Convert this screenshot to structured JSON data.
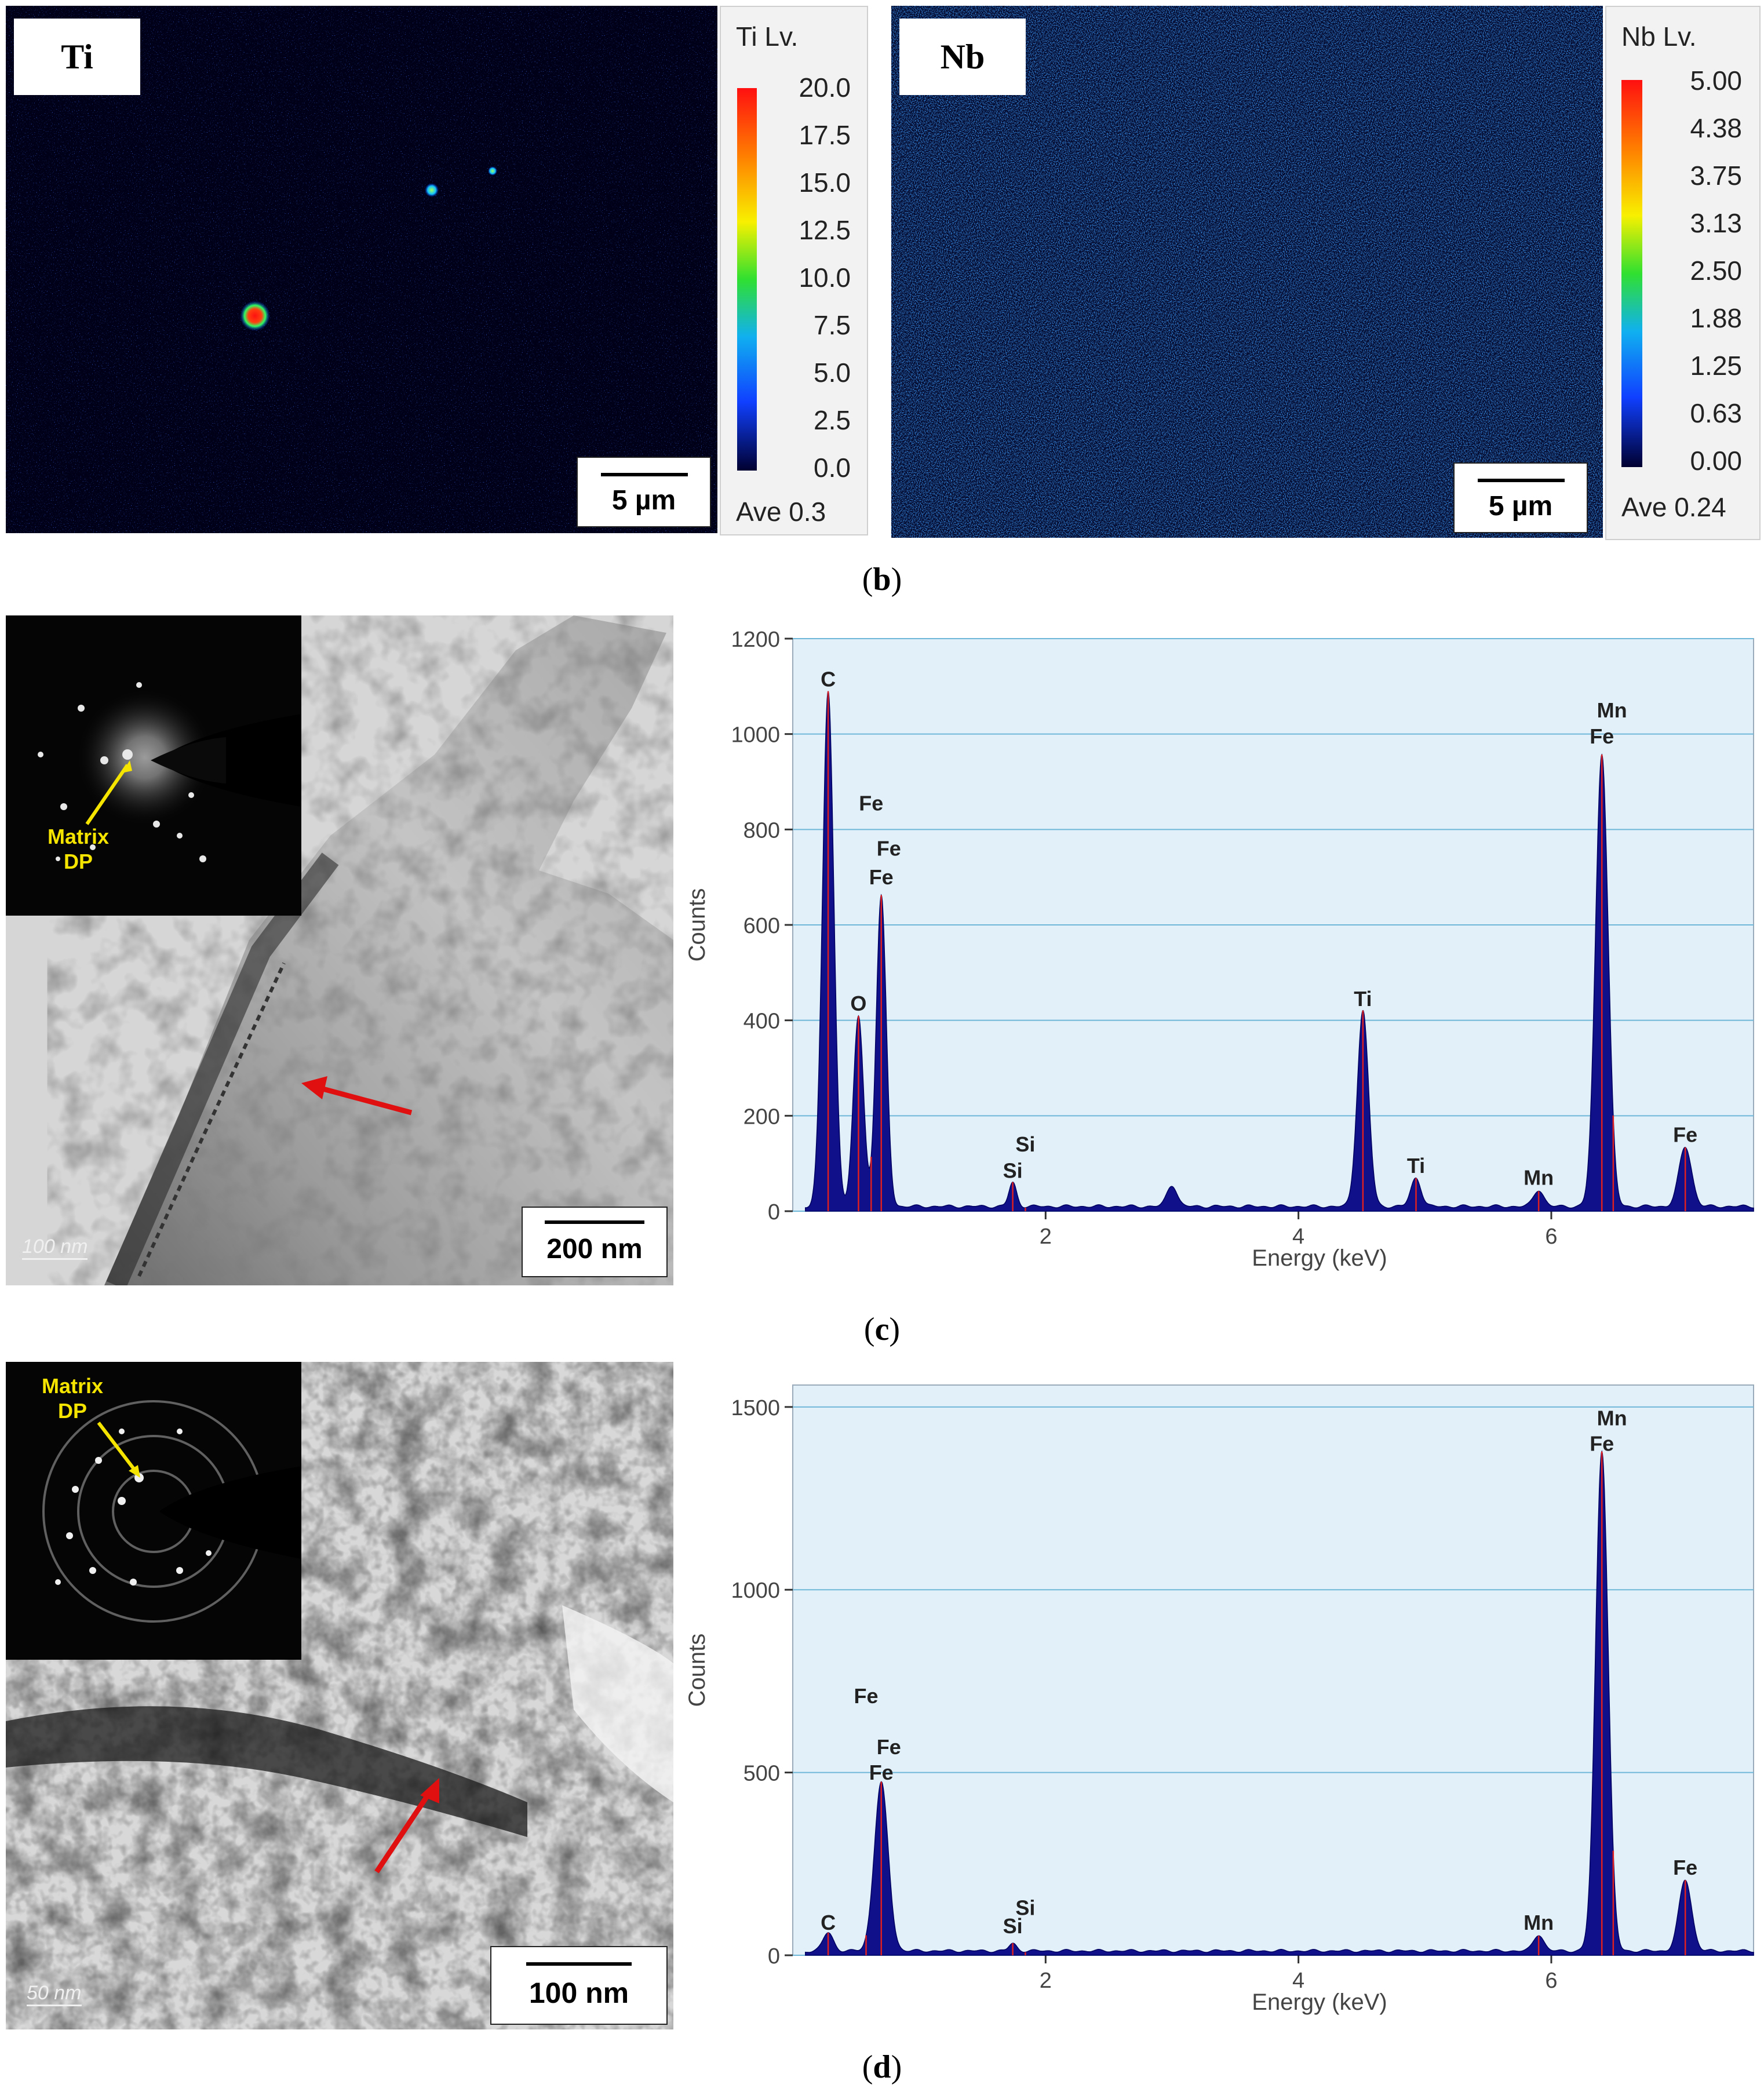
{
  "panel_b": {
    "caption_letter": "b",
    "maps": [
      {
        "element": "Ti",
        "colorbar_title": "Ti  Lv.",
        "ticks": [
          "20.0",
          "17.5",
          "15.0",
          "12.5",
          "10.0",
          "7.5",
          "5.0",
          "2.5",
          "0.0"
        ],
        "average": "Ave 0.3",
        "scale_bar": "5 µm"
      },
      {
        "element": "Nb",
        "colorbar_title": "Nb  Lv.",
        "ticks": [
          "5.00",
          "4.38",
          "3.75",
          "3.13",
          "2.50",
          "1.88",
          "1.25",
          "0.63",
          "0.00"
        ],
        "average": "Ave 0.24",
        "scale_bar": "5 µm"
      }
    ]
  },
  "panel_c": {
    "caption_letter": "c",
    "tem": {
      "inset_label_1": "Matrix",
      "inset_label_2": "DP",
      "scale_bar": "200 nm",
      "instrument_scale": "100 nm"
    }
  },
  "panel_d": {
    "caption_letter": "d",
    "tem": {
      "inset_label_1": "Matrix",
      "inset_label_2": "DP",
      "scale_bar": "100 nm",
      "instrument_scale": "50 nm"
    }
  },
  "chart_data": [
    {
      "type": "line",
      "panel": "c",
      "xlabel": "Energy (keV)",
      "ylabel": "Counts",
      "xlim": [
        0,
        7.6
      ],
      "ylim": [
        0,
        1200
      ],
      "x_ticks": [
        2,
        4,
        6
      ],
      "y_ticks": [
        0,
        200,
        400,
        600,
        800,
        1000,
        1200
      ],
      "grid": true,
      "background": "#e2f0fa",
      "fill_color": "#10108a",
      "marker_color": "#e02020",
      "peaks": [
        {
          "x": 0.28,
          "y": 1080,
          "w": 0.045
        },
        {
          "x": 0.52,
          "y": 400,
          "w": 0.04
        },
        {
          "x": 0.7,
          "y": 650,
          "w": 0.04
        },
        {
          "x": 1.74,
          "y": 50,
          "w": 0.03
        },
        {
          "x": 3.0,
          "y": 45,
          "w": 0.04
        },
        {
          "x": 4.51,
          "y": 410,
          "w": 0.045
        },
        {
          "x": 4.93,
          "y": 60,
          "w": 0.04
        },
        {
          "x": 5.9,
          "y": 35,
          "w": 0.04
        },
        {
          "x": 6.4,
          "y": 950,
          "w": 0.05
        },
        {
          "x": 7.06,
          "y": 125,
          "w": 0.05
        }
      ],
      "baseline": 10,
      "annotations": [
        {
          "text": "C",
          "x": 0.28,
          "y": 1100
        },
        {
          "text": "Fe",
          "x": 0.62,
          "y": 840
        },
        {
          "text": "Fe",
          "x": 0.76,
          "y": 745
        },
        {
          "text": "Fe",
          "x": 0.7,
          "y": 685
        },
        {
          "text": "O",
          "x": 0.52,
          "y": 420
        },
        {
          "text": "Si",
          "x": 1.84,
          "y": 125
        },
        {
          "text": "Si",
          "x": 1.74,
          "y": 70
        },
        {
          "text": "Ti",
          "x": 4.51,
          "y": 430
        },
        {
          "text": "Ti",
          "x": 4.93,
          "y": 80
        },
        {
          "text": "Mn",
          "x": 5.9,
          "y": 55
        },
        {
          "text": "Mn",
          "x": 6.48,
          "y": 1035
        },
        {
          "text": "Fe",
          "x": 6.4,
          "y": 980
        },
        {
          "text": "Fe",
          "x": 7.06,
          "y": 145
        }
      ],
      "marker_lines": [
        0.28,
        0.52,
        0.62,
        0.7,
        1.74,
        1.84,
        4.51,
        4.93,
        5.9,
        6.4,
        6.49,
        7.06
      ]
    },
    {
      "type": "line",
      "panel": "d",
      "xlabel": "Energy (keV)",
      "ylabel": "Counts",
      "xlim": [
        0,
        7.6
      ],
      "ylim": [
        0,
        1560
      ],
      "x_ticks": [
        2,
        4,
        6
      ],
      "y_ticks": [
        0,
        500,
        1000,
        1500
      ],
      "grid": true,
      "background": "#e2f0fa",
      "fill_color": "#10108a",
      "marker_color": "#e02020",
      "peaks": [
        {
          "x": 0.28,
          "y": 50,
          "w": 0.04
        },
        {
          "x": 0.7,
          "y": 460,
          "w": 0.055
        },
        {
          "x": 1.74,
          "y": 20,
          "w": 0.03
        },
        {
          "x": 5.9,
          "y": 45,
          "w": 0.04
        },
        {
          "x": 6.4,
          "y": 1370,
          "w": 0.05
        },
        {
          "x": 7.06,
          "y": 195,
          "w": 0.05
        }
      ],
      "baseline": 12,
      "annotations": [
        {
          "text": "Fe",
          "x": 0.58,
          "y": 690
        },
        {
          "text": "Fe",
          "x": 0.76,
          "y": 550
        },
        {
          "text": "Fe",
          "x": 0.7,
          "y": 480
        },
        {
          "text": "C",
          "x": 0.28,
          "y": 70
        },
        {
          "text": "Si",
          "x": 1.84,
          "y": 110
        },
        {
          "text": "Si",
          "x": 1.74,
          "y": 60
        },
        {
          "text": "Mn",
          "x": 5.9,
          "y": 70
        },
        {
          "text": "Mn",
          "x": 6.48,
          "y": 1450
        },
        {
          "text": "Fe",
          "x": 6.4,
          "y": 1380
        },
        {
          "text": "Fe",
          "x": 7.06,
          "y": 220
        }
      ],
      "marker_lines": [
        0.28,
        0.58,
        0.7,
        1.74,
        1.84,
        5.9,
        6.4,
        6.49,
        7.06
      ]
    }
  ]
}
